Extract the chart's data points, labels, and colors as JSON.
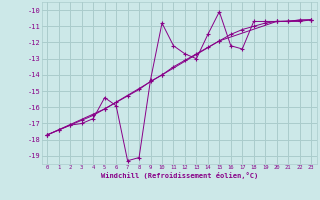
{
  "title": "",
  "xlabel": "Windchill (Refroidissement éolien,°C)",
  "background_color": "#cce8e8",
  "grid_color": "#aacccc",
  "line_color": "#880088",
  "xlim": [
    -0.5,
    23.5
  ],
  "ylim": [
    -19.5,
    -9.5
  ],
  "yticks": [
    -10,
    -11,
    -12,
    -13,
    -14,
    -15,
    -16,
    -17,
    -18,
    -19
  ],
  "xticks": [
    0,
    1,
    2,
    3,
    4,
    5,
    6,
    7,
    8,
    9,
    10,
    11,
    12,
    13,
    14,
    15,
    16,
    17,
    18,
    19,
    20,
    21,
    22,
    23
  ],
  "series1_x": [
    0,
    1,
    2,
    3,
    4,
    5,
    6,
    7,
    8,
    9,
    10,
    11,
    12,
    13,
    14,
    15,
    16,
    17,
    18,
    19,
    20,
    21,
    22,
    23
  ],
  "series1_y": [
    -17.7,
    -17.4,
    -17.1,
    -17.0,
    -16.7,
    -15.4,
    -15.9,
    -19.3,
    -19.1,
    -14.3,
    -10.8,
    -12.2,
    -12.7,
    -13.0,
    -11.5,
    -10.1,
    -12.2,
    -12.4,
    -10.7,
    -10.7,
    -10.7,
    -10.7,
    -10.7,
    -10.6
  ],
  "series2_x": [
    0,
    1,
    2,
    3,
    4,
    5,
    6,
    7,
    8,
    9,
    10,
    11,
    12,
    13,
    14,
    15,
    16,
    17,
    18,
    19,
    20,
    21,
    22,
    23
  ],
  "series2_y": [
    -17.7,
    -17.4,
    -17.1,
    -16.8,
    -16.5,
    -16.1,
    -15.7,
    -15.3,
    -14.9,
    -14.4,
    -14.0,
    -13.5,
    -13.1,
    -12.7,
    -12.3,
    -11.9,
    -11.5,
    -11.2,
    -11.0,
    -10.8,
    -10.7,
    -10.7,
    -10.6,
    -10.6
  ],
  "series3_x": [
    0,
    5,
    10,
    15,
    20,
    23
  ],
  "series3_y": [
    -17.7,
    -16.1,
    -14.0,
    -11.9,
    -10.7,
    -10.6
  ]
}
